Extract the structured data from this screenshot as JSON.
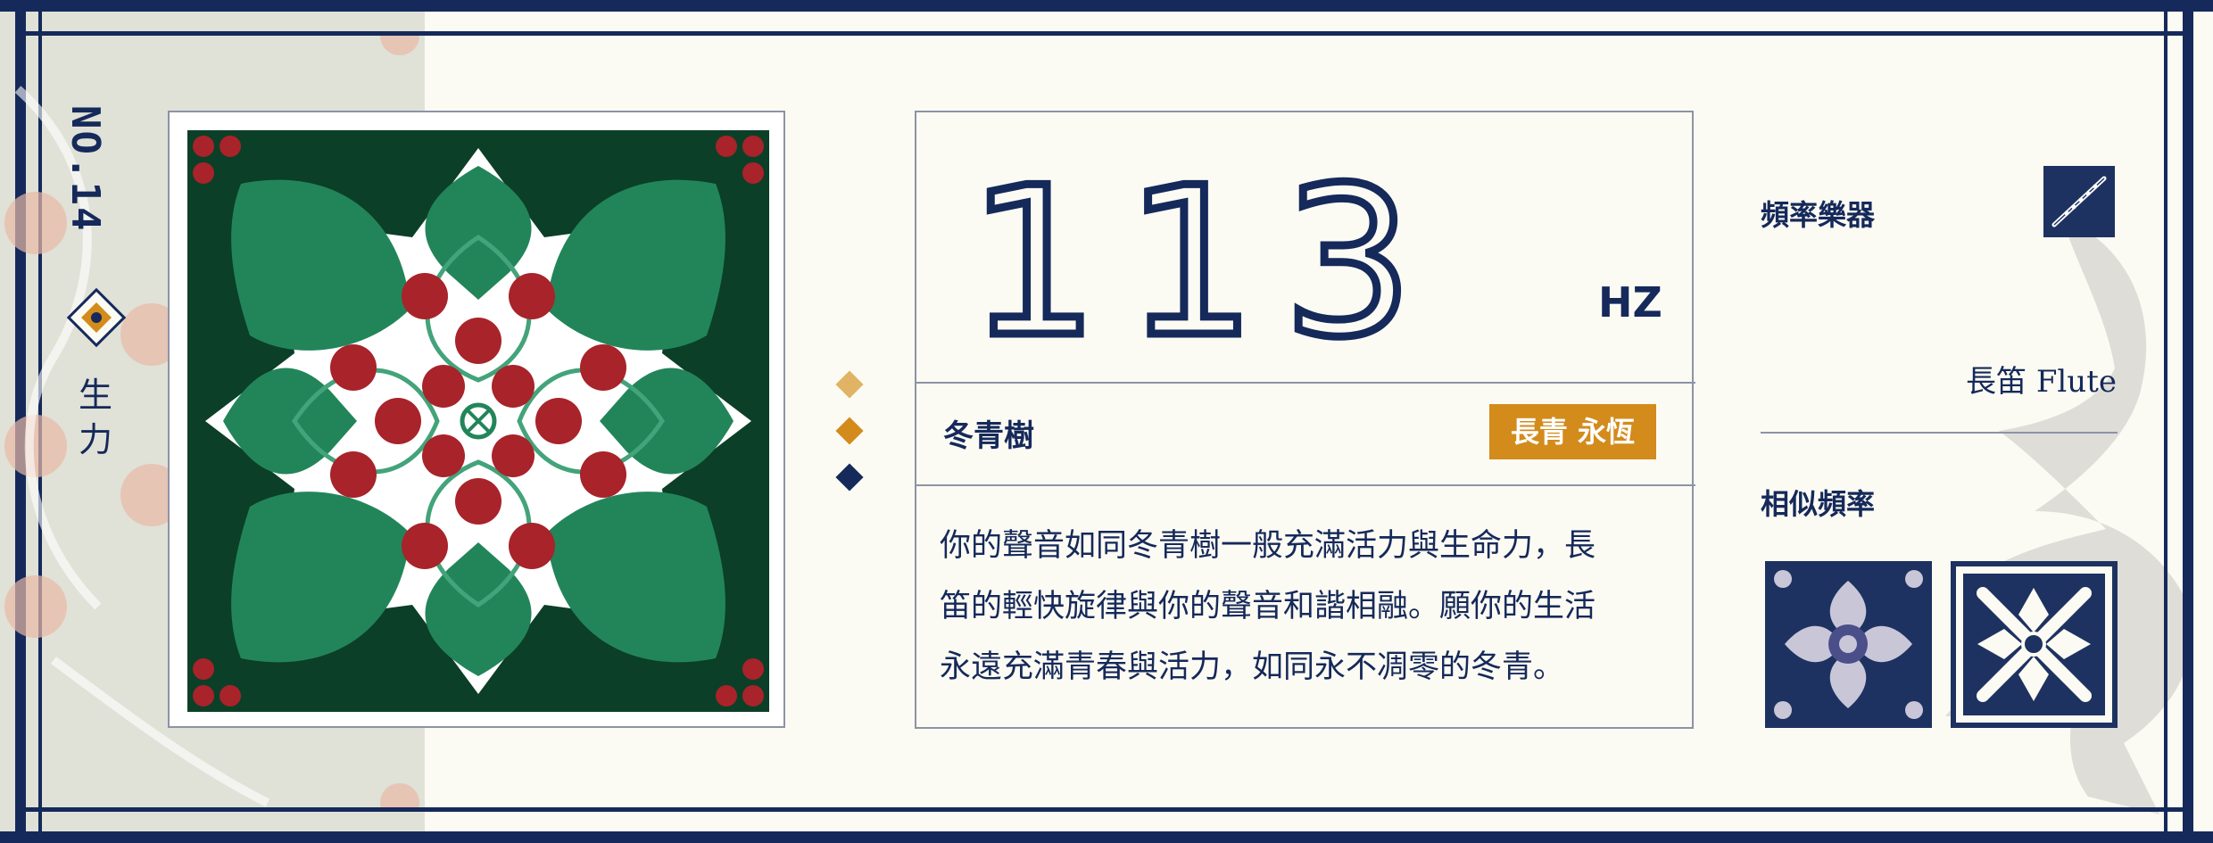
{
  "number_label": "NO.14",
  "side_word": "生力",
  "frequency": {
    "value": "113",
    "unit": "HZ"
  },
  "plant": {
    "name": "冬青樹",
    "tag": "長青 永恆"
  },
  "description": "你的聲音如同冬青樹一般充滿活力與生命力，長笛的輕快旋律與你的聲音和諧相融。願你的生活永遠充滿青春與活力，如同永不凋零的冬青。",
  "description_lines": [
    "你的聲音如同冬青樹一般充滿活力與生命力，長",
    "笛的輕快旋律與你的聲音和諧相融。願你的生活",
    "永遠充滿青春與活力，如同永不凋零的冬青。"
  ],
  "instrument": {
    "title": "頻率樂器",
    "name": "長笛 Flute",
    "icon": "flute-icon"
  },
  "similar": {
    "title": "相似頻率",
    "items": [
      "similar-tile-1",
      "similar-tile-2"
    ]
  },
  "colors": {
    "navy": "#15295a",
    "dark_green": "#0c3f27",
    "green": "#22855a",
    "red": "#a8232a",
    "gold": "#d38b1c",
    "cream": "#fcfbf3"
  }
}
